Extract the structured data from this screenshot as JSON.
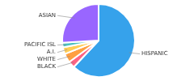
{
  "chart_data": {
    "type": "pie",
    "categories": [
      "HISPANIC",
      "BLACK",
      "WHITE",
      "A.I.",
      "PACIFIC ISL",
      "ASIAN"
    ],
    "values": [
      62,
      3,
      4,
      3,
      2,
      26
    ]
  }
}
